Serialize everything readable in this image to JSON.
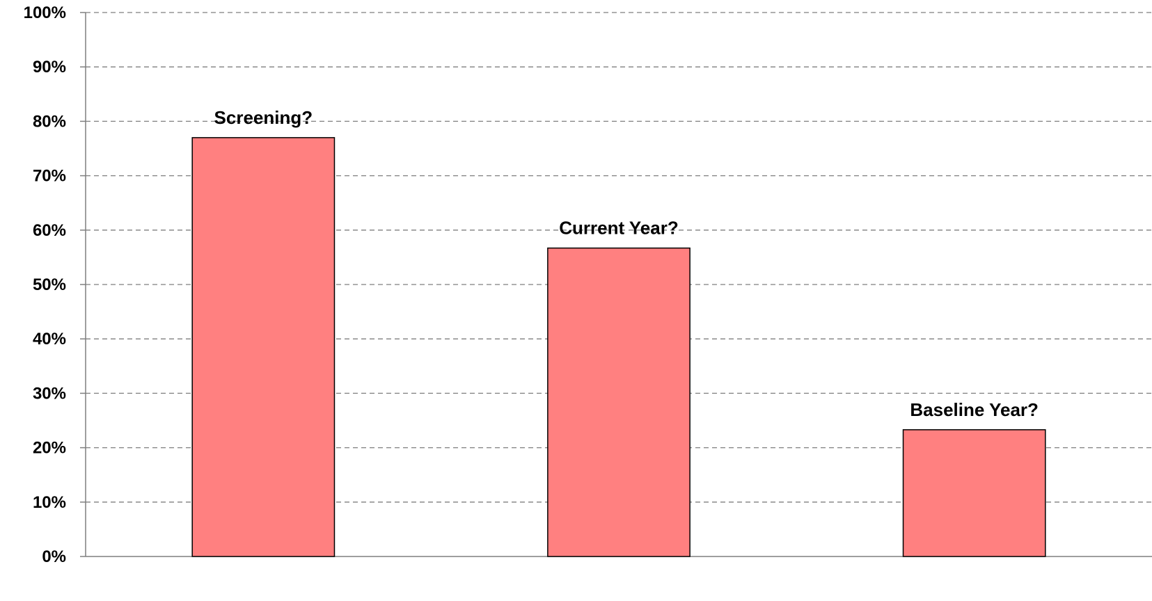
{
  "chart_data": {
    "type": "bar",
    "title": "",
    "xlabel": "",
    "ylabel": "",
    "categories": [
      "Screening?",
      "Current Year?",
      "Baseline Year?"
    ],
    "values": [
      77,
      56.7,
      23.3
    ],
    "ylim": [
      0,
      100
    ],
    "yticks": [
      0,
      10,
      20,
      30,
      40,
      50,
      60,
      70,
      80,
      90,
      100
    ],
    "ytick_labels": [
      "0%",
      "10%",
      "20%",
      "30%",
      "40%",
      "50%",
      "60%",
      "70%",
      "80%",
      "90%",
      "100%"
    ],
    "data_labels": [
      "Screening?",
      "Current Year?",
      "Baseline Year?"
    ],
    "grid": "horizontal dashed",
    "legend": "none",
    "colors": {
      "bar_fill": "#ff8080",
      "bar_stroke": "#000000",
      "grid": "#7f7f7f",
      "axis": "#7f7f7f"
    }
  }
}
